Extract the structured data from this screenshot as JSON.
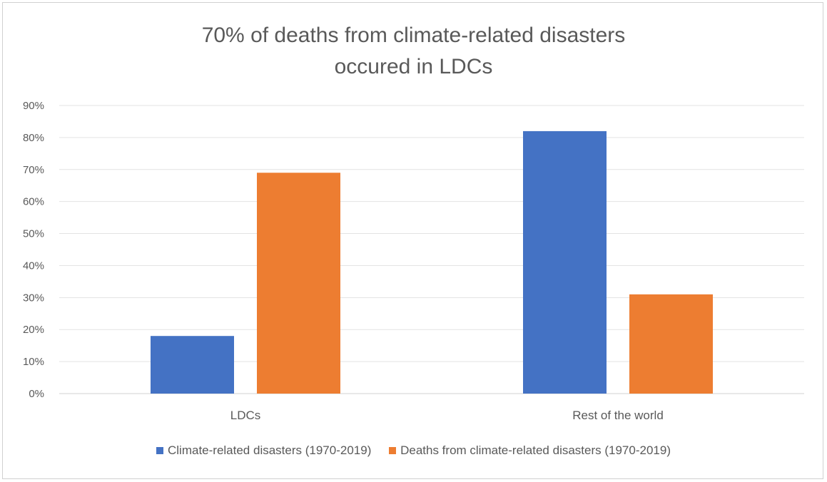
{
  "chart_data": {
    "type": "bar",
    "title_lines": [
      "70% of deaths from climate-related disasters",
      "occured in LDCs"
    ],
    "categories": [
      "LDCs",
      "Rest of the world"
    ],
    "series": [
      {
        "name": "Climate-related disasters (1970-2019)",
        "color": "#4472C4",
        "values": [
          18,
          82
        ]
      },
      {
        "name": "Deaths from climate-related disasters (1970-2019)",
        "color": "#ED7D31",
        "values": [
          69,
          31
        ]
      }
    ],
    "yticks": [
      "0%",
      "10%",
      "20%",
      "30%",
      "40%",
      "50%",
      "60%",
      "70%",
      "80%",
      "90%"
    ],
    "ylim": [
      0,
      90
    ],
    "grid": true,
    "legend_position": "bottom"
  }
}
